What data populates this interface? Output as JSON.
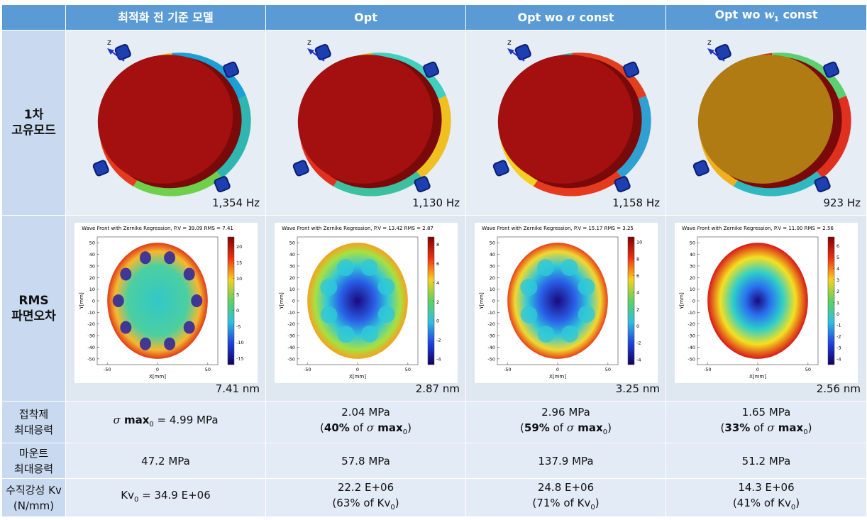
{
  "header": {
    "columns": [
      [
        [
          "최적화 전 기준 모델"
        ]
      ],
      [
        [
          "Opt"
        ]
      ],
      [
        [
          "Opt wo ",
          {
            "i": "σ"
          },
          " const"
        ]
      ],
      [
        [
          "Opt wo ",
          {
            "i": "w"
          },
          {
            "sub": "1"
          },
          " const"
        ]
      ]
    ]
  },
  "mode_axis_label": "z",
  "plot_axes": {
    "xlabel": "X[mm]",
    "ylabel": "Y[mm]",
    "xlim": [
      -60,
      60
    ],
    "ylim": [
      -55,
      55
    ],
    "xticks": [
      -50,
      0,
      50
    ],
    "yticks": [
      50,
      40,
      30,
      20,
      10,
      0,
      -10,
      -20,
      -30,
      -40,
      -50
    ],
    "radius": 50
  },
  "plots": [
    {
      "title": "Wave Front with Zernike Regression, P.V = 39.09 RMS = 7.41",
      "clim": [
        -17,
        23
      ],
      "cticks": [
        20,
        15,
        10,
        5,
        0,
        -5,
        -10,
        -15
      ]
    },
    {
      "title": "Wave Front with Zernike Regression, P.V = 13.42 RMS = 2.87",
      "clim": [
        -4.6,
        8.8
      ],
      "cticks": [
        8,
        6,
        4,
        2,
        0,
        -2,
        -4
      ]
    },
    {
      "title": "Wave Front with Zernike Regression, P.V = 15.17 RMS = 3.25",
      "clim": [
        -4.6,
        10.6
      ],
      "cticks": [
        10,
        8,
        6,
        4,
        2,
        0,
        -2,
        -4
      ]
    },
    {
      "title": "Wave Front with Zernike Regression, P.V = 11.00 RMS = 2.56",
      "clim": [
        -4.5,
        6.8
      ],
      "cticks": [
        6,
        5,
        4,
        3,
        2,
        1,
        0,
        -1,
        -2,
        -3,
        -4
      ]
    }
  ],
  "rows": [
    {
      "label": [
        [
          "1차"
        ],
        [
          "고유모드"
        ]
      ],
      "cells": [
        "1,354 Hz",
        "1,130 Hz",
        "1,158 Hz",
        "923 Hz"
      ]
    },
    {
      "label": [
        [
          "RMS"
        ],
        [
          "파면오차"
        ]
      ],
      "cells": [
        "7.41 nm",
        "2.87 nm",
        "3.25 nm",
        "2.56 nm"
      ]
    },
    {
      "label": [
        [
          "접착제"
        ],
        [
          "최대응력"
        ]
      ],
      "cells": [
        [
          [
            {
              "i": "σ"
            },
            {
              "b": " max"
            },
            {
              "sub": "0"
            },
            " = 4.99 MPa"
          ]
        ],
        [
          [
            "2.04 MPa"
          ],
          [
            "(",
            {
              "b": "40%"
            },
            " of ",
            {
              "i": "σ"
            },
            {
              "b": " max"
            },
            {
              "sub": "0"
            },
            ")"
          ]
        ],
        [
          [
            "2.96 MPa"
          ],
          [
            "(",
            {
              "b": "59%"
            },
            " of ",
            {
              "i": "σ"
            },
            {
              "b": " max"
            },
            {
              "sub": "0"
            },
            ")"
          ]
        ],
        [
          [
            "1.65 MPa"
          ],
          [
            "(",
            {
              "b": "33%"
            },
            " of ",
            {
              "i": "σ"
            },
            {
              "b": " max"
            },
            {
              "sub": "0"
            },
            ")"
          ]
        ]
      ]
    },
    {
      "label": [
        [
          "마운트"
        ],
        [
          "최대응력"
        ]
      ],
      "cells": [
        [
          [
            "47.2 MPa"
          ]
        ],
        [
          [
            "57.8 MPa"
          ]
        ],
        [
          [
            "137.9 MPa"
          ]
        ],
        [
          [
            "51.2 MPa"
          ]
        ]
      ]
    },
    {
      "label": [
        [
          "수직강성 Kv"
        ],
        [
          "(N/mm)"
        ]
      ],
      "cells": [
        [
          [
            "Kv",
            {
              "sub": "0"
            },
            " = 34.9 E+06"
          ]
        ],
        [
          [
            "22.2 E+06"
          ],
          [
            "(63% of Kv",
            {
              "sub": "0"
            },
            ")"
          ]
        ],
        [
          [
            "24.8 E+06"
          ],
          [
            "(71% of Kv",
            {
              "sub": "0"
            },
            ")"
          ]
        ],
        [
          [
            "14.3 E+06"
          ],
          [
            "(41% of Kv",
            {
              "sub": "0"
            },
            ")"
          ]
        ]
      ]
    }
  ]
}
